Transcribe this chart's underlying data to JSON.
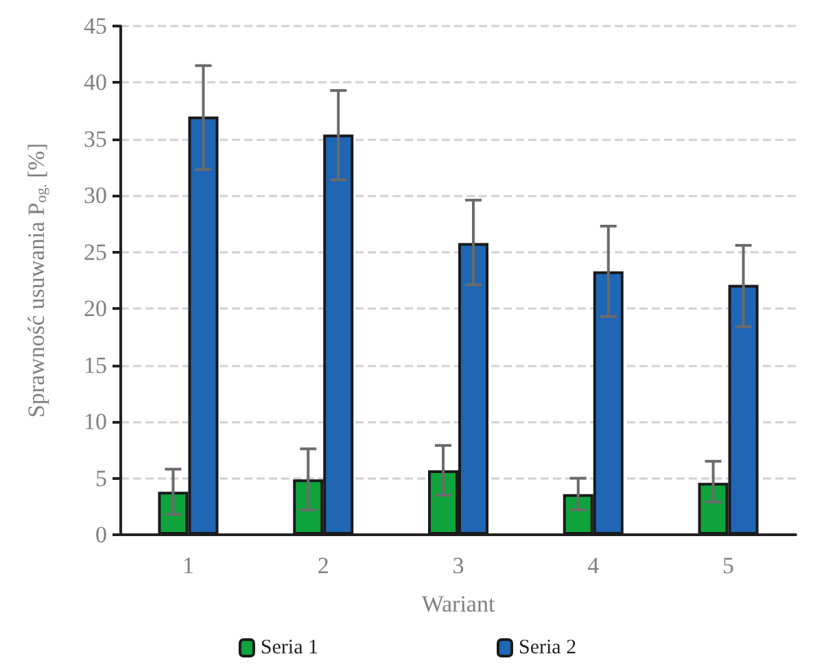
{
  "chart_data": {
    "type": "bar",
    "xlabel": "Wariant",
    "ylabel": "Sprawność usuwania P$_{og.}$ [%]",
    "categories": [
      "1",
      "2",
      "3",
      "4",
      "5"
    ],
    "series": [
      {
        "name": "Seria 1",
        "color": "#0fa33c",
        "values": [
          3.8,
          4.9,
          5.7,
          3.6,
          4.6
        ],
        "errors": [
          [
            1.8,
            5.8
          ],
          [
            2.2,
            7.6
          ],
          [
            3.5,
            7.9
          ],
          [
            2.2,
            5.0
          ],
          [
            2.9,
            6.5
          ]
        ]
      },
      {
        "name": "Seria 2",
        "color": "#1f66b4",
        "values": [
          37,
          35.4,
          25.8,
          23.3,
          22.1
        ],
        "errors": [
          [
            32.3,
            41.5
          ],
          [
            31.4,
            39.3
          ],
          [
            22.1,
            29.6
          ],
          [
            19.3,
            27.3
          ],
          [
            18.4,
            25.6
          ]
        ]
      }
    ],
    "ylim": [
      0,
      45
    ],
    "yticks": [
      0,
      5,
      10,
      15,
      20,
      25,
      30,
      35,
      40,
      45
    ],
    "grid": "y",
    "legend": "bottom"
  }
}
